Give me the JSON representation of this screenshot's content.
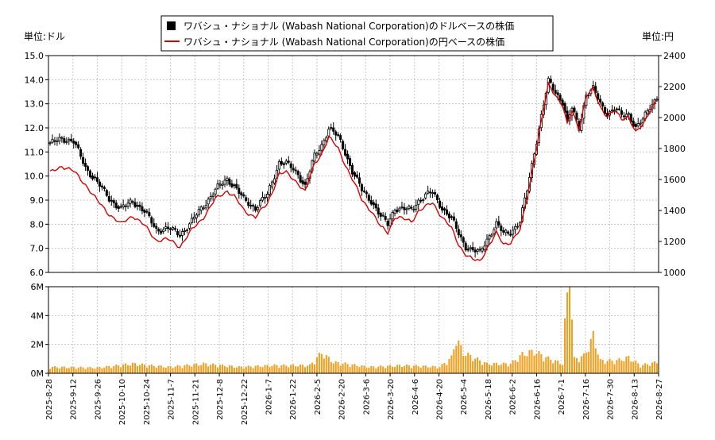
{
  "legend": {
    "usd_label": "ワバシュ・ナショナル (Wabash National Corporation)のドルベースの株価",
    "jpy_label": "ワバシュ・ナショナル (Wabash National Corporation)の円ベースの株価"
  },
  "units": {
    "left": "単位:ドル",
    "right": "単位:円"
  },
  "colors": {
    "candle": "#000000",
    "yen_line": "#dd0000",
    "volume": "#f0a020",
    "grid": "#c8c8c8"
  },
  "chart_data": [
    {
      "type": "candlestick",
      "title": "",
      "left_axis": {
        "label": "単位:ドル",
        "ylim": [
          6.0,
          15.0
        ],
        "ticks": [
          "6.0",
          "7.0",
          "8.0",
          "9.0",
          "10.0",
          "11.0",
          "12.0",
          "13.0",
          "14.0",
          "15.0"
        ]
      },
      "right_axis": {
        "label": "単位:円",
        "ylim": [
          1000,
          2400
        ],
        "ticks": [
          "1000",
          "1200",
          "1400",
          "1600",
          "1800",
          "2000",
          "2200",
          "2400"
        ]
      },
      "grid": true,
      "legend_position": "top-center",
      "x_ticks": [
        "2025-8-28",
        "2025-9-12",
        "2025-9-26",
        "2025-10-10",
        "2025-10-24",
        "2025-11-7",
        "2025-11-21",
        "2025-12-8",
        "2025-12-22",
        "2026-1-7",
        "2026-1-22",
        "2026-2-5",
        "2026-2-20",
        "2026-3-6",
        "2026-3-20",
        "2026-4-6",
        "2026-4-20",
        "2026-5-4",
        "2026-5-18",
        "2026-6-2",
        "2026-6-16",
        "2026-7-1",
        "2026-7-16",
        "2026-7-30",
        "2026-8-13",
        "2026-8-27"
      ],
      "usd_close_anchors": [
        [
          0,
          11.3
        ],
        [
          5,
          11.6
        ],
        [
          10,
          11.4
        ],
        [
          15,
          10.4
        ],
        [
          20,
          9.7
        ],
        [
          25,
          9.1
        ],
        [
          30,
          8.6
        ],
        [
          35,
          9.0
        ],
        [
          40,
          8.5
        ],
        [
          45,
          7.8
        ],
        [
          50,
          7.8
        ],
        [
          55,
          7.6
        ],
        [
          60,
          8.1
        ],
        [
          65,
          8.8
        ],
        [
          70,
          9.4
        ],
        [
          75,
          9.9
        ],
        [
          78,
          9.6
        ],
        [
          82,
          9.0
        ],
        [
          87,
          8.7
        ],
        [
          92,
          9.2
        ],
        [
          97,
          10.6
        ],
        [
          100,
          10.5
        ],
        [
          105,
          10.1
        ],
        [
          108,
          9.6
        ],
        [
          112,
          10.8
        ],
        [
          115,
          11.3
        ],
        [
          118,
          12.0
        ],
        [
          122,
          11.6
        ],
        [
          125,
          11.0
        ],
        [
          128,
          10.2
        ],
        [
          132,
          9.4
        ],
        [
          136,
          9.0
        ],
        [
          140,
          8.3
        ],
        [
          143,
          8.0
        ],
        [
          146,
          8.7
        ],
        [
          150,
          8.6
        ],
        [
          153,
          8.6
        ],
        [
          156,
          9.0
        ],
        [
          159,
          9.2
        ],
        [
          162,
          9.3
        ],
        [
          166,
          8.7
        ],
        [
          170,
          8.2
        ],
        [
          173,
          7.6
        ],
        [
          176,
          7.1
        ],
        [
          179,
          6.9
        ],
        [
          182,
          6.8
        ],
        [
          185,
          7.4
        ],
        [
          189,
          8.0
        ],
        [
          192,
          7.6
        ],
        [
          195,
          7.7
        ],
        [
          199,
          8.1
        ],
        [
          202,
          9.4
        ],
        [
          205,
          11.0
        ],
        [
          208,
          12.5
        ],
        [
          211,
          13.9
        ],
        [
          214,
          13.5
        ],
        [
          217,
          13.1
        ],
        [
          219,
          12.2
        ],
        [
          221,
          12.8
        ],
        [
          224,
          12.0
        ],
        [
          227,
          13.4
        ],
        [
          230,
          13.6
        ],
        [
          233,
          13.0
        ],
        [
          236,
          12.6
        ],
        [
          239,
          12.8
        ],
        [
          242,
          12.5
        ],
        [
          245,
          12.6
        ],
        [
          248,
          12.0
        ],
        [
          251,
          12.3
        ],
        [
          254,
          12.9
        ],
        [
          257,
          13.3
        ]
      ],
      "jpy_close_anchors": [
        [
          0,
          1640
        ],
        [
          5,
          1690
        ],
        [
          10,
          1650
        ],
        [
          15,
          1570
        ],
        [
          20,
          1460
        ],
        [
          25,
          1380
        ],
        [
          30,
          1310
        ],
        [
          35,
          1370
        ],
        [
          40,
          1300
        ],
        [
          45,
          1210
        ],
        [
          50,
          1210
        ],
        [
          55,
          1170
        ],
        [
          60,
          1270
        ],
        [
          65,
          1360
        ],
        [
          70,
          1470
        ],
        [
          75,
          1530
        ],
        [
          78,
          1490
        ],
        [
          82,
          1400
        ],
        [
          87,
          1360
        ],
        [
          92,
          1440
        ],
        [
          97,
          1640
        ],
        [
          100,
          1640
        ],
        [
          105,
          1580
        ],
        [
          108,
          1520
        ],
        [
          112,
          1700
        ],
        [
          115,
          1770
        ],
        [
          118,
          1870
        ],
        [
          122,
          1800
        ],
        [
          125,
          1700
        ],
        [
          128,
          1600
        ],
        [
          132,
          1470
        ],
        [
          136,
          1400
        ],
        [
          140,
          1290
        ],
        [
          143,
          1260
        ],
        [
          146,
          1360
        ],
        [
          150,
          1340
        ],
        [
          153,
          1330
        ],
        [
          156,
          1400
        ],
        [
          159,
          1420
        ],
        [
          162,
          1450
        ],
        [
          166,
          1360
        ],
        [
          170,
          1280
        ],
        [
          173,
          1180
        ],
        [
          176,
          1120
        ],
        [
          179,
          1080
        ],
        [
          182,
          1070
        ],
        [
          185,
          1160
        ],
        [
          189,
          1250
        ],
        [
          192,
          1180
        ],
        [
          195,
          1200
        ],
        [
          199,
          1270
        ],
        [
          202,
          1480
        ],
        [
          205,
          1730
        ],
        [
          208,
          1970
        ],
        [
          211,
          2210
        ],
        [
          214,
          2150
        ],
        [
          217,
          2080
        ],
        [
          219,
          1950
        ],
        [
          221,
          2040
        ],
        [
          224,
          1930
        ],
        [
          227,
          2140
        ],
        [
          230,
          2180
        ],
        [
          233,
          2070
        ],
        [
          236,
          2010
        ],
        [
          239,
          2040
        ],
        [
          242,
          1990
        ],
        [
          245,
          2010
        ],
        [
          248,
          1900
        ],
        [
          251,
          1950
        ],
        [
          254,
          2050
        ],
        [
          257,
          2120
        ]
      ]
    },
    {
      "type": "bar",
      "title": "",
      "series_label": "volume",
      "ylim": [
        0,
        6000000
      ],
      "ticks": [
        "0M",
        "2M",
        "4M",
        "6M"
      ],
      "volume_anchors_millions": [
        [
          0,
          0.4
        ],
        [
          20,
          0.35
        ],
        [
          35,
          0.6
        ],
        [
          50,
          0.4
        ],
        [
          65,
          0.6
        ],
        [
          80,
          0.4
        ],
        [
          95,
          0.5
        ],
        [
          110,
          0.5
        ],
        [
          115,
          1.3
        ],
        [
          120,
          0.7
        ],
        [
          135,
          0.4
        ],
        [
          150,
          0.5
        ],
        [
          165,
          0.4
        ],
        [
          170,
          1.0
        ],
        [
          172,
          2.2
        ],
        [
          175,
          1.3
        ],
        [
          185,
          0.6
        ],
        [
          195,
          0.6
        ],
        [
          200,
          1.2
        ],
        [
          205,
          1.4
        ],
        [
          210,
          1.0
        ],
        [
          217,
          0.6
        ],
        [
          219,
          5.6
        ],
        [
          220,
          6.2
        ],
        [
          222,
          0.9
        ],
        [
          226,
          1.1
        ],
        [
          229,
          2.0
        ],
        [
          230,
          2.4
        ],
        [
          233,
          0.8
        ],
        [
          240,
          0.8
        ],
        [
          245,
          1.0
        ],
        [
          250,
          0.5
        ],
        [
          257,
          0.7
        ]
      ]
    }
  ]
}
